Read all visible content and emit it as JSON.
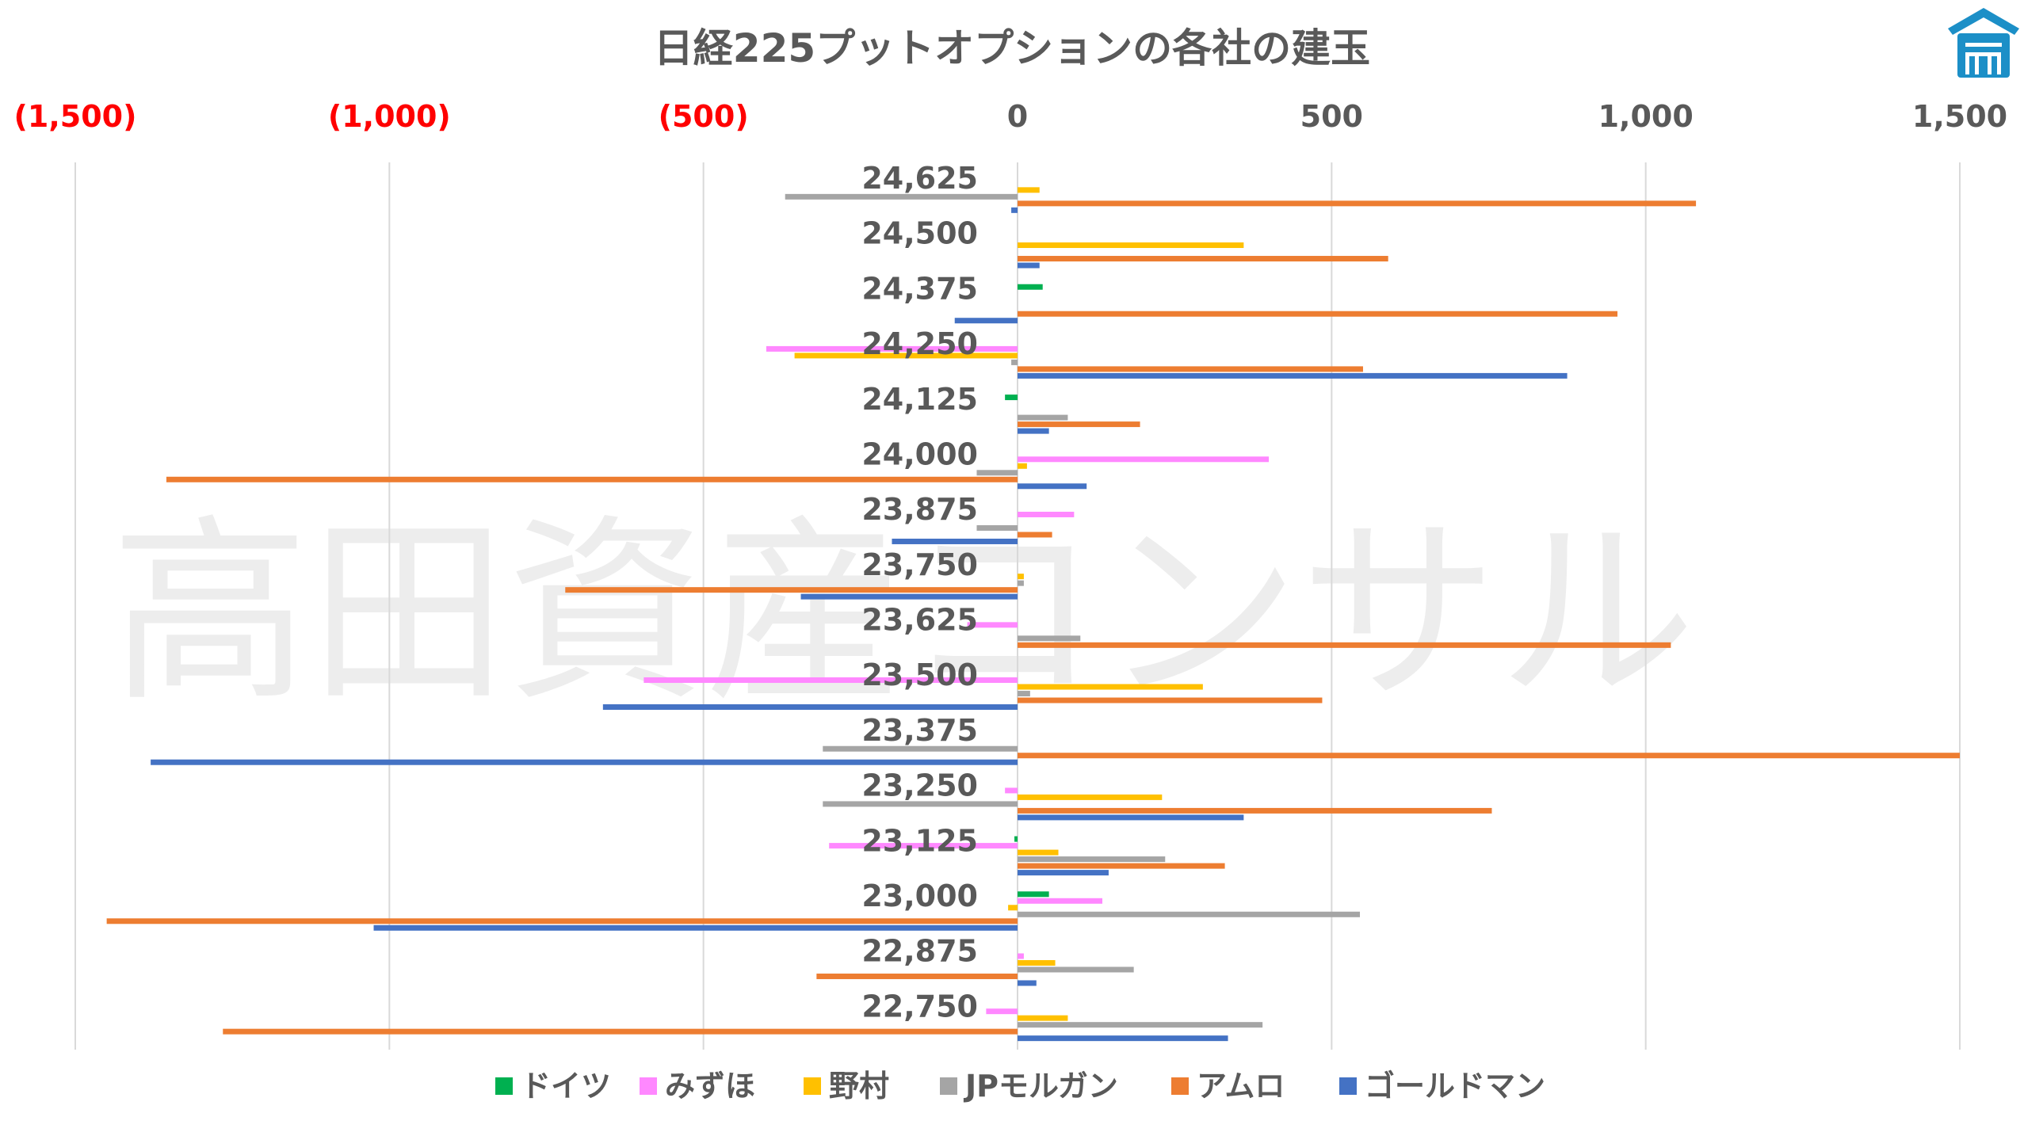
{
  "chart_data": {
    "type": "bar",
    "orientation": "horizontal",
    "title": "日経225プットオプションの各社の建玉",
    "watermark": "高田資産コンサル",
    "xlim": [
      -1500,
      1500
    ],
    "x_ticks": [
      -1500,
      -1000,
      -500,
      0,
      500,
      1000,
      1500
    ],
    "x_tick_labels": [
      "(1,500)",
      "(1,000)",
      "(500)",
      "0",
      "500",
      "1,000",
      "1,500"
    ],
    "negative_tick_color": "#ff0000",
    "grid": true,
    "legend_position": "bottom",
    "categories": [
      "24,625",
      "24,500",
      "24,375",
      "24,250",
      "24,125",
      "24,000",
      "23,875",
      "23,750",
      "23,625",
      "23,500",
      "23,375",
      "23,250",
      "23,125",
      "23,000",
      "22,875",
      "22,750"
    ],
    "series": [
      {
        "name": "ドイツ",
        "color": "#00b050",
        "values": [
          0,
          0,
          40,
          0,
          -20,
          0,
          0,
          0,
          0,
          0,
          0,
          0,
          -5,
          50,
          0,
          0
        ]
      },
      {
        "name": "みずほ",
        "color": "#ff88ff",
        "values": [
          0,
          0,
          0,
          -400,
          0,
          400,
          90,
          0,
          -80,
          -595,
          0,
          -20,
          -300,
          135,
          10,
          -50
        ]
      },
      {
        "name": "野村",
        "color": "#ffc000",
        "values": [
          35,
          360,
          0,
          -355,
          0,
          15,
          0,
          10,
          0,
          295,
          0,
          230,
          65,
          -15,
          60,
          80
        ]
      },
      {
        "name": "JPモルガン",
        "color": "#a5a5a5",
        "values": [
          -370,
          0,
          0,
          -10,
          80,
          -65,
          -65,
          10,
          100,
          20,
          -310,
          -310,
          235,
          545,
          185,
          390
        ]
      },
      {
        "name": "アムロ",
        "color": "#ed7d31",
        "values": [
          1080,
          590,
          955,
          550,
          195,
          -1355,
          55,
          -720,
          1040,
          485,
          1500,
          755,
          330,
          -1450,
          -320,
          -1265
        ]
      },
      {
        "name": "ゴールドマン",
        "color": "#4472c4",
        "values": [
          -10,
          35,
          -100,
          875,
          50,
          110,
          -200,
          -345,
          0,
          -660,
          -1380,
          360,
          145,
          -1025,
          30,
          335
        ]
      }
    ]
  },
  "logo": {
    "name": "takata-logo",
    "color": "#1c8fc7"
  }
}
